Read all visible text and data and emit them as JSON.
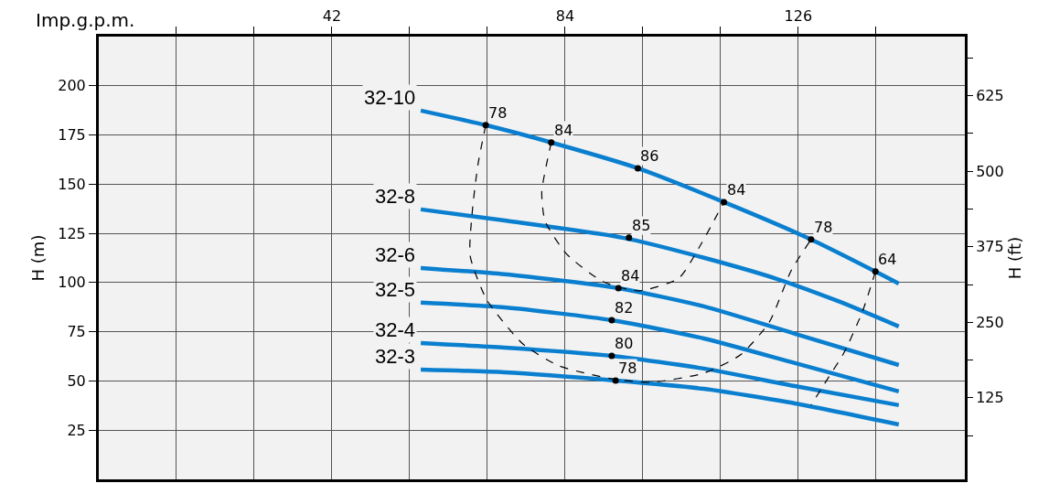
{
  "chart_data": {
    "type": "line",
    "xlabel": "Imp.g.p.m.",
    "ylabel": "H (m)",
    "y2label": "H (ft)",
    "xlim": [
      0,
      156
    ],
    "xticks": [
      {
        "value": 14,
        "label": null
      },
      {
        "value": 28,
        "label": null
      },
      42,
      {
        "value": 56,
        "label": null
      },
      {
        "value": 70,
        "label": null
      },
      84,
      {
        "value": 98,
        "label": null
      },
      {
        "value": 112,
        "label": null
      },
      126,
      {
        "value": 140,
        "label": null
      }
    ],
    "ylim": [
      0,
      225
    ],
    "yticks": [
      25,
      50,
      75,
      100,
      125,
      150,
      175,
      200
    ],
    "y2lim": [
      -10,
      723
    ],
    "y2ticks": [
      {
        "value": 62.5,
        "label": null
      },
      125,
      {
        "value": 187.5,
        "label": null
      },
      250,
      {
        "value": 312.5,
        "label": null
      },
      375,
      {
        "value": 437.5,
        "label": null
      },
      500,
      {
        "value": 562.5,
        "label": null
      },
      625,
      {
        "value": 687.5,
        "label": null
      }
    ],
    "grid": true,
    "legend": false,
    "series": [
      {
        "name": "32-10",
        "color": "#0a7fcf",
        "x": [
          58.0,
          69.7,
          81.5,
          97.1,
          112.6,
          128.3,
          139.9,
          144.1
        ],
        "values": [
          187.4,
          180.0,
          171.2,
          158.1,
          140.9,
          121.9,
          105.6,
          99.5
        ]
      },
      {
        "name": "32-8",
        "color": "#0a7fcf",
        "x": [
          58.0,
          73.1,
          94.4,
          109.0,
          122.1,
          133.5,
          144.1
        ],
        "values": [
          137.2,
          131.6,
          122.8,
          112.6,
          101.9,
          90.2,
          77.7
        ]
      },
      {
        "name": "32-6",
        "color": "#0a7fcf",
        "x": [
          58.0,
          73.1,
          93.6,
          109.0,
          125.4,
          144.1
        ],
        "values": [
          107.4,
          104.2,
          97.2,
          87.9,
          74.0,
          58.1
        ]
      },
      {
        "name": "32-5",
        "color": "#0a7fcf",
        "x": [
          58.0,
          73.1,
          92.4,
          109.0,
          125.4,
          144.1
        ],
        "values": [
          89.8,
          87.4,
          80.9,
          71.6,
          59.1,
          44.7
        ]
      },
      {
        "name": "32-4",
        "color": "#0a7fcf",
        "x": [
          58.0,
          73.1,
          92.4,
          109.0,
          125.4,
          144.1
        ],
        "values": [
          69.3,
          67.0,
          62.8,
          56.3,
          47.4,
          37.7
        ]
      },
      {
        "name": "32-3",
        "color": "#0a7fcf",
        "x": [
          58.0,
          73.1,
          93.1,
          109.0,
          125.4,
          144.1
        ],
        "values": [
          55.8,
          54.4,
          50.2,
          46.0,
          38.6,
          27.9
        ]
      },
      {
        "color": "#000000",
        "line_style": "dashed",
        "x": [
          69.7,
          68.3,
          67.3,
          66.9,
          69.9,
          76.4,
          82.9,
          92.2,
          99.2,
          109.0,
          115.6,
          120.8,
          124.7,
          128.3
        ],
        "values": [
          180.0,
          160.0,
          136.7,
          113.5,
          91.2,
          68.8,
          57.7,
          51.2,
          49.3,
          54.0,
          63.3,
          80.0,
          106.0,
          121.9
        ]
      },
      {
        "color": "#000000",
        "line_style": "dashed",
        "x": [
          81.5,
          79.8,
          80.4,
          84.3,
          90.8,
          97.3,
          104.5,
          108.4,
          112.6
        ],
        "values": [
          171.2,
          146.0,
          131.2,
          114.4,
          100.5,
          95.8,
          102.3,
          119.1,
          140.9
        ]
      },
      {
        "color": "#000000",
        "line_style": "dashed",
        "x": [
          139.9,
          137.6,
          134.3,
          131.2,
          128.3
        ],
        "values": [
          105.6,
          85.6,
          64.7,
          50.7,
          37.7
        ]
      },
      {
        "type": "scatter",
        "marker": "circle",
        "color": "#000000",
        "x": [
          69.7,
          81.5,
          97.1,
          112.6,
          128.3,
          139.9,
          95.5,
          93.6,
          92.4,
          92.4,
          93.1
        ],
        "values": [
          180.0,
          171.2,
          158.1,
          140.9,
          121.9,
          105.6,
          122.8,
          97.2,
          80.9,
          62.8,
          50.2
        ]
      }
    ],
    "annotations": [
      {
        "text": "78",
        "x": 69.7,
        "y": 180.0
      },
      {
        "text": "84",
        "x": 81.5,
        "y": 171.2
      },
      {
        "text": "86",
        "x": 97.1,
        "y": 158.1
      },
      {
        "text": "84",
        "x": 112.6,
        "y": 140.9
      },
      {
        "text": "78",
        "x": 128.3,
        "y": 121.9
      },
      {
        "text": "64",
        "x": 139.9,
        "y": 105.6
      },
      {
        "text": "85",
        "x": 95.5,
        "y": 122.8
      },
      {
        "text": "84",
        "x": 93.6,
        "y": 97.2
      },
      {
        "text": "82",
        "x": 92.4,
        "y": 80.9
      },
      {
        "text": "80",
        "x": 92.4,
        "y": 62.8
      },
      {
        "text": "78",
        "x": 93.1,
        "y": 50.2
      }
    ]
  }
}
